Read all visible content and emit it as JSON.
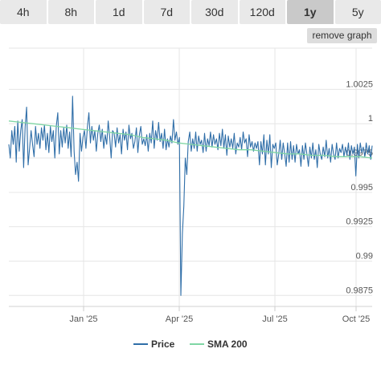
{
  "tabs": [
    {
      "label": "4h",
      "active": false
    },
    {
      "label": "8h",
      "active": false
    },
    {
      "label": "1d",
      "active": false
    },
    {
      "label": "7d",
      "active": false
    },
    {
      "label": "30d",
      "active": false
    },
    {
      "label": "120d",
      "active": false
    },
    {
      "label": "1y",
      "active": true
    },
    {
      "label": "5y",
      "active": false
    }
  ],
  "remove_graph_label": "remove graph",
  "colors": {
    "price": "#2f6ea8",
    "sma": "#7fd6a4",
    "grid": "#e6e6e6"
  },
  "chart_data": {
    "type": "line",
    "x_ticks": [
      "Jan '25",
      "Apr '25",
      "Jul '25",
      "Oct '25"
    ],
    "y_ticks": [
      {
        "value": 1.0025,
        "label": "1.0025"
      },
      {
        "value": 1.0,
        "label": "1"
      },
      {
        "value": 0.9975,
        "label": "0.9975"
      },
      {
        "value": 0.995,
        "label": "0.995"
      },
      {
        "value": 0.9925,
        "label": "0.9925"
      },
      {
        "value": 0.99,
        "label": "0.99"
      },
      {
        "value": 0.9875,
        "label": "0.9875"
      }
    ],
    "ylim": [
      0.9867,
      1.0055
    ],
    "grid": true,
    "legend_position": "bottom-center",
    "series": [
      {
        "name": "Price",
        "values": [
          0.9985,
          0.9975,
          0.9995,
          0.9985,
          0.9998,
          0.9972,
          1.0002,
          0.998,
          0.9995,
          1.0003,
          0.9968,
          0.9998,
          1.0012,
          0.997,
          0.9982,
          0.9995,
          0.9985,
          0.9976,
          0.9998,
          0.9985,
          0.9993,
          0.9982,
          0.9997,
          0.9988,
          0.9999,
          0.9981,
          0.9993,
          0.9979,
          0.9998,
          0.9987,
          0.9995,
          0.9975,
          0.9998,
          1.0008,
          0.9978,
          0.9995,
          0.9983,
          0.9997,
          0.9986,
          0.9999,
          0.9982,
          0.9994,
          0.9976,
          1.002,
          0.998,
          0.9963,
          0.9972,
          0.9958,
          0.9993,
          0.998,
          0.999,
          0.9995,
          0.9982,
          0.9998,
          1.0008,
          0.9986,
          0.9998,
          0.9988,
          0.9995,
          0.998,
          0.9993,
          0.9999,
          0.9987,
          0.9996,
          0.9982,
          0.9992,
          0.9985,
          1.0002,
          0.999,
          0.9975,
          0.9995,
          0.9993,
          0.9983,
          0.9997,
          0.9986,
          0.9992,
          0.9978,
          0.9996,
          0.9988,
          0.9994,
          0.9981,
          0.9999,
          0.9989,
          0.9993,
          0.9982,
          0.9987,
          0.9997,
          0.9979,
          0.9992,
          0.9998,
          0.9985,
          0.9989,
          0.9984,
          0.9992,
          0.998,
          0.9993,
          0.9986,
          1.0002,
          0.9982,
          0.9995,
          0.9988,
          1.0001,
          0.9987,
          0.9993,
          0.9982,
          0.9996,
          0.9981,
          0.9989,
          0.9983,
          0.9991,
          0.9986,
          1.0003,
          0.9988,
          0.9994,
          0.9985,
          0.999,
          0.9875,
          0.992,
          0.994,
          0.9975,
          0.9963,
          0.9987,
          0.9994,
          0.998,
          0.9989,
          0.9982,
          0.9994,
          0.998,
          0.9991,
          0.9985,
          0.9988,
          0.9979,
          0.9993,
          0.998,
          0.9989,
          0.9984,
          0.9994,
          0.9983,
          0.9992,
          0.9985,
          0.9989,
          0.9981,
          0.9993,
          0.9984,
          0.9996,
          0.9982,
          0.9992,
          0.9977,
          0.9991,
          0.9983,
          0.9989,
          0.9982,
          0.9993,
          0.9978,
          0.9986,
          0.9983,
          0.999,
          0.9981,
          0.9994,
          0.9986,
          0.9989,
          0.9976,
          0.9992,
          0.9983,
          0.9987,
          0.998,
          0.9986,
          0.9982,
          0.9987,
          0.997,
          0.9987,
          0.9978,
          0.9992,
          0.997,
          0.9988,
          0.9978,
          0.9992,
          0.9968,
          0.9985,
          0.9982,
          0.9986,
          0.997,
          0.9978,
          0.9988,
          0.9974,
          0.9986,
          0.9978,
          0.9969,
          0.9986,
          0.9972,
          0.9987,
          0.9974,
          0.9984,
          0.9972,
          0.9985,
          0.9978,
          0.9981,
          0.9969,
          0.9984,
          0.9974,
          0.9986,
          0.9978,
          0.9969,
          0.9983,
          0.9975,
          0.9986,
          0.9974,
          0.9981,
          0.9968,
          0.9985,
          0.9978,
          0.9974,
          0.9983,
          0.9976,
          0.9988,
          0.9975,
          0.9982,
          0.9972,
          0.9985,
          0.9978,
          0.9974,
          0.9986,
          0.9975,
          0.9982,
          0.9979,
          0.9985,
          0.9976,
          0.9983,
          0.9977,
          0.9986,
          0.9974,
          0.9984,
          0.9978,
          0.9983,
          0.9962,
          0.9985,
          0.9975,
          0.9986,
          0.9979,
          0.9983,
          0.9976,
          0.9986,
          0.9978,
          0.9984,
          0.9974,
          0.9984
        ]
      },
      {
        "name": "SMA 200",
        "values": [
          1.0002,
          1.0001,
          1.0,
          0.9999,
          0.9998,
          0.9997,
          0.9996,
          0.9995,
          0.9994,
          0.9993,
          0.9992,
          0.999,
          0.9989,
          0.9988,
          0.9986,
          0.9985,
          0.9984,
          0.9983,
          0.9982,
          0.9981,
          0.9981,
          0.998,
          0.9979,
          0.9978,
          0.9978,
          0.9977,
          0.9977,
          0.9976,
          0.9976,
          0.9976,
          0.9975
        ]
      }
    ]
  },
  "legend": [
    {
      "label": "Price"
    },
    {
      "label": "SMA 200"
    }
  ]
}
